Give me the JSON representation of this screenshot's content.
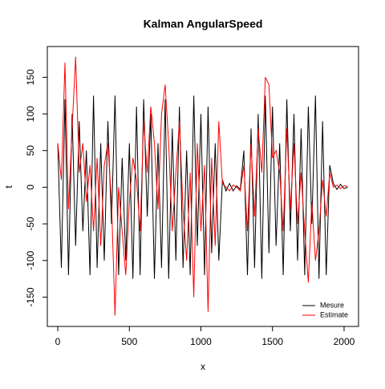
{
  "chart_data": {
    "type": "line",
    "title": "Kalman AngularSpeed",
    "x_label": "x",
    "y_label": "t",
    "x": [
      0,
      25,
      50,
      75,
      100,
      125,
      150,
      175,
      200,
      225,
      250,
      275,
      300,
      325,
      350,
      375,
      400,
      425,
      450,
      475,
      500,
      525,
      550,
      575,
      600,
      625,
      650,
      675,
      700,
      725,
      750,
      775,
      800,
      825,
      850,
      875,
      900,
      925,
      950,
      975,
      1000,
      1025,
      1050,
      1075,
      1100,
      1125,
      1150,
      1175,
      1200,
      1225,
      1250,
      1275,
      1300,
      1325,
      1350,
      1375,
      1400,
      1425,
      1450,
      1475,
      1500,
      1525,
      1550,
      1575,
      1600,
      1625,
      1650,
      1675,
      1700,
      1725,
      1750,
      1775,
      1800,
      1825,
      1850,
      1875,
      1900,
      1925,
      1950,
      1975,
      2000,
      2025
    ],
    "series": [
      {
        "name": "Mesure",
        "color": "#000000",
        "values": [
          60,
          -110,
          120,
          -120,
          100,
          -80,
          90,
          -60,
          50,
          -120,
          125,
          -110,
          60,
          -100,
          90,
          -50,
          125,
          -120,
          40,
          -100,
          60,
          -125,
          110,
          -120,
          120,
          -40,
          100,
          -125,
          60,
          -110,
          120,
          -125,
          80,
          -100,
          110,
          -110,
          50,
          -120,
          125,
          -80,
          100,
          -120,
          110,
          -90,
          60,
          -100,
          10,
          -5,
          5,
          -5,
          2,
          -3,
          50,
          -120,
          80,
          -110,
          100,
          -125,
          125,
          -90,
          110,
          -80,
          60,
          -120,
          120,
          -60,
          100,
          -100,
          80,
          -120,
          110,
          -50,
          125,
          -125,
          90,
          -120,
          30,
          5,
          -3,
          4,
          -2,
          0
        ]
      },
      {
        "name": "Estimate",
        "color": "#ff0000",
        "values": [
          60,
          10,
          170,
          -30,
          80,
          178,
          20,
          60,
          -20,
          30,
          -60,
          40,
          -80,
          30,
          60,
          -20,
          -175,
          0,
          -60,
          -120,
          -20,
          40,
          10,
          -60,
          90,
          20,
          110,
          60,
          -30,
          100,
          140,
          60,
          -60,
          20,
          90,
          -30,
          -100,
          20,
          -150,
          60,
          -60,
          30,
          -170,
          40,
          -80,
          90,
          5,
          0,
          -5,
          3,
          0,
          -5,
          30,
          -60,
          60,
          -40,
          80,
          20,
          150,
          140,
          40,
          50,
          20,
          -60,
          80,
          -30,
          60,
          -50,
          20,
          -60,
          -130,
          -20,
          -100,
          -60,
          10,
          -40,
          20,
          0,
          3,
          -2,
          2,
          1
        ]
      }
    ],
    "xlim": [
      -73,
      2101
    ],
    "ylim": [
      -190,
      192
    ],
    "xticks": [
      0,
      500,
      1000,
      1500,
      2000
    ],
    "yticks": [
      -150,
      -100,
      -50,
      0,
      50,
      100,
      150
    ],
    "legend": "bottom-right"
  }
}
